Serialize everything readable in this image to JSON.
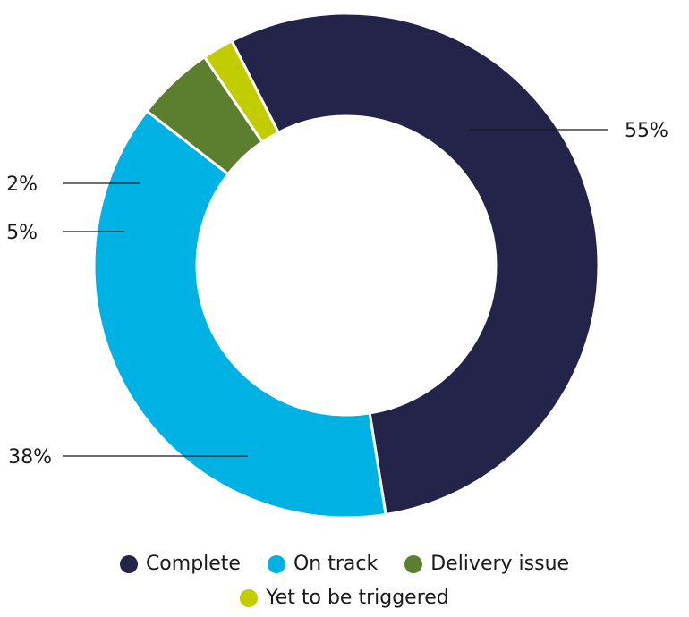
{
  "chart_data": {
    "type": "pie",
    "variant": "donut",
    "title": "",
    "slices": [
      {
        "name": "Complete",
        "value": 55,
        "label": "55%",
        "color": "#24234a",
        "label_side": "right"
      },
      {
        "name": "On track",
        "value": 38,
        "label": "38%",
        "color": "#00b2e3",
        "label_side": "left"
      },
      {
        "name": "Delivery issue",
        "value": 5,
        "label": "5%",
        "color": "#5b7f2e",
        "label_side": "left"
      },
      {
        "name": "Yet to be triggered",
        "value": 2,
        "label": "2%",
        "color": "#c1cd00",
        "label_side": "left"
      }
    ],
    "legend": {
      "placement": "bottom",
      "entries": [
        {
          "label": "Complete",
          "color": "#24234a"
        },
        {
          "label": "On track",
          "color": "#00b2e3"
        },
        {
          "label": "Delivery issue",
          "color": "#5b7f2e"
        },
        {
          "label": "Yet to be triggered",
          "color": "#c1cd00"
        }
      ]
    }
  }
}
